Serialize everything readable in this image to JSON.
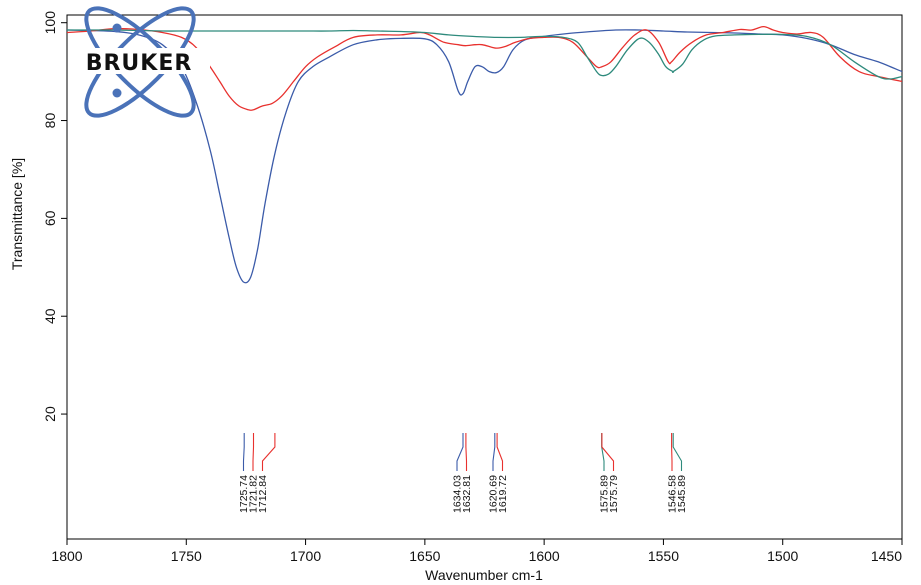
{
  "chart_data": {
    "type": "line",
    "xlabel": "Wavenumber cm-1",
    "ylabel": "Transmittance [%]",
    "xlim": [
      1800,
      1450
    ],
    "x_reversed": true,
    "ylim": [
      0,
      100
    ],
    "x_ticks": [
      1800,
      1750,
      1700,
      1650,
      1600,
      1550,
      1500,
      1450
    ],
    "y_ticks": [
      20,
      40,
      60,
      80,
      100
    ],
    "grid": false,
    "legend": "none",
    "logo_text": "BRUKER",
    "colors": {
      "blue": "#3b5ba9",
      "red": "#e8312e",
      "teal": "#2e8a7c",
      "logo": "#4a72b8"
    },
    "series": [
      {
        "color": "blue",
        "x": [
          1800,
          1790,
          1780,
          1770,
          1760,
          1752,
          1746,
          1740,
          1736,
          1732,
          1729,
          1726,
          1723,
          1720,
          1717,
          1713,
          1708,
          1703,
          1697,
          1690,
          1680,
          1670,
          1660,
          1650,
          1645,
          1640,
          1636,
          1634,
          1632,
          1629,
          1626,
          1623,
          1620,
          1617,
          1613,
          1608,
          1600,
          1590,
          1580,
          1570,
          1560,
          1550,
          1540,
          1530,
          1520,
          1510,
          1500,
          1490,
          1480,
          1470,
          1460,
          1450
        ],
        "y": [
          98.5,
          98.4,
          98.2,
          97.5,
          95.5,
          91,
          84,
          74,
          65,
          56,
          50,
          47,
          48,
          54,
          63,
          73,
          82,
          88,
          91,
          93,
          95.5,
          96.5,
          96.8,
          96.7,
          95.5,
          92,
          86,
          85.5,
          88,
          91,
          91,
          90,
          89.8,
          91,
          94.5,
          96.5,
          97.2,
          97.8,
          98.2,
          98.5,
          98.5,
          98.3,
          98.1,
          98,
          97.9,
          97.7,
          97.5,
          96.8,
          95.5,
          93.5,
          92,
          90
        ]
      },
      {
        "color": "red",
        "x": [
          1800,
          1790,
          1780,
          1770,
          1760,
          1752,
          1746,
          1740,
          1736,
          1732,
          1728,
          1724,
          1721.82,
          1718,
          1714,
          1710,
          1705,
          1700,
          1695,
          1688,
          1680,
          1670,
          1660,
          1652,
          1648,
          1642,
          1636,
          1633,
          1629,
          1626,
          1622,
          1619.72,
          1616,
          1612,
          1606,
          1600,
          1594,
          1588,
          1582,
          1578,
          1575.79,
          1572,
          1567,
          1562,
          1557,
          1552,
          1548,
          1546.58,
          1543,
          1538,
          1532,
          1525,
          1518,
          1513,
          1508,
          1504,
          1500,
          1494,
          1488,
          1483,
          1476,
          1468,
          1460,
          1450
        ],
        "y": [
          98,
          98.3,
          98.8,
          98.6,
          98,
          97,
          95,
          91,
          88,
          85,
          83,
          82.2,
          82.2,
          83,
          83.5,
          85,
          88,
          91,
          93,
          95,
          97,
          97.5,
          97.5,
          98,
          97.5,
          96,
          95.5,
          95.3,
          95.5,
          95.5,
          95,
          94.8,
          95.2,
          96,
          96.8,
          97,
          97,
          96,
          93,
          91,
          91,
          92,
          95,
          97.5,
          98.5,
          96,
          92,
          92,
          94,
          96,
          97.5,
          98,
          98.6,
          98.5,
          99.2,
          98.5,
          98,
          97.7,
          98,
          97,
          93,
          90,
          89,
          88
        ]
      },
      {
        "color": "teal",
        "x": [
          1800,
          1790,
          1780,
          1770,
          1760,
          1750,
          1740,
          1730,
          1720,
          1710,
          1700,
          1690,
          1680,
          1670,
          1660,
          1650,
          1640,
          1630,
          1620,
          1610,
          1600,
          1592,
          1586,
          1582,
          1578,
          1575.89,
          1573,
          1570,
          1565,
          1560,
          1556,
          1552,
          1549,
          1546,
          1545.89,
          1542,
          1538,
          1533,
          1528,
          1520,
          1510,
          1500,
          1490,
          1480,
          1470,
          1460,
          1455,
          1450
        ],
        "y": [
          98.5,
          98.5,
          98.5,
          98.4,
          98.3,
          98.3,
          98.3,
          98.3,
          98.3,
          98.3,
          98.3,
          98.3,
          98.4,
          98.3,
          98.2,
          98,
          97.5,
          97.2,
          97,
          97,
          97.2,
          97,
          96,
          93,
          90,
          89.2,
          89.5,
          91,
          94.5,
          96.8,
          96,
          93.5,
          91,
          90,
          90,
          91.5,
          94.5,
          96.5,
          97.3,
          97.5,
          97.6,
          97.6,
          97.2,
          95.5,
          92,
          89,
          88.5,
          89
        ]
      }
    ],
    "peak_groups": [
      {
        "labels": [
          "1725.74",
          "1721.82",
          "1712.84"
        ],
        "x": [
          1725.74,
          1721.82,
          1712.84
        ],
        "colors": [
          "blue",
          "red",
          "red"
        ]
      },
      {
        "labels": [
          "1634.03",
          "1632.81"
        ],
        "x": [
          1634.03,
          1632.81
        ],
        "colors": [
          "blue",
          "red"
        ]
      },
      {
        "labels": [
          "1620.69",
          "1619.72"
        ],
        "x": [
          1620.69,
          1619.72
        ],
        "colors": [
          "blue",
          "red"
        ]
      },
      {
        "labels": [
          "1575.89",
          "1575.79"
        ],
        "x": [
          1575.89,
          1575.79
        ],
        "colors": [
          "teal",
          "red"
        ]
      },
      {
        "labels": [
          "1546.58",
          "1545.89"
        ],
        "x": [
          1546.58,
          1545.89
        ],
        "colors": [
          "red",
          "teal"
        ]
      }
    ]
  }
}
